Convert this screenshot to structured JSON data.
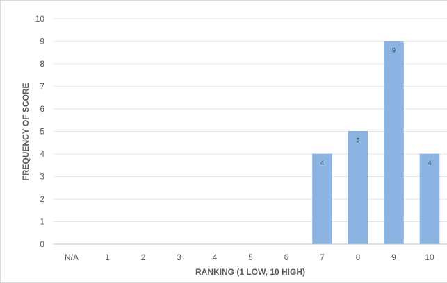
{
  "chart_data": {
    "type": "bar",
    "categories": [
      "N/A",
      "1",
      "2",
      "3",
      "4",
      "5",
      "6",
      "7",
      "8",
      "9",
      "10"
    ],
    "values": [
      0,
      0,
      0,
      0,
      0,
      0,
      0,
      4,
      5,
      9,
      4
    ],
    "data_labels": [
      "",
      "",
      "",
      "",
      "",
      "",
      "",
      "4",
      "5",
      "9",
      "4"
    ],
    "title": "",
    "xlabel": "RANKING (1 LOW, 10 HIGH)",
    "ylabel": "FREQUENCY OF SCORE",
    "ylim": [
      0,
      10
    ],
    "yticks": [
      "0",
      "1",
      "2",
      "3",
      "4",
      "5",
      "6",
      "7",
      "8",
      "9",
      "10"
    ],
    "grid": true,
    "legend": "none",
    "colors": {
      "bar": "#8cb4e2",
      "bar_edge": "#7aa6d8",
      "grid": "#e6e6e6",
      "axis": "#bfbfbf",
      "text": "#595959"
    }
  }
}
